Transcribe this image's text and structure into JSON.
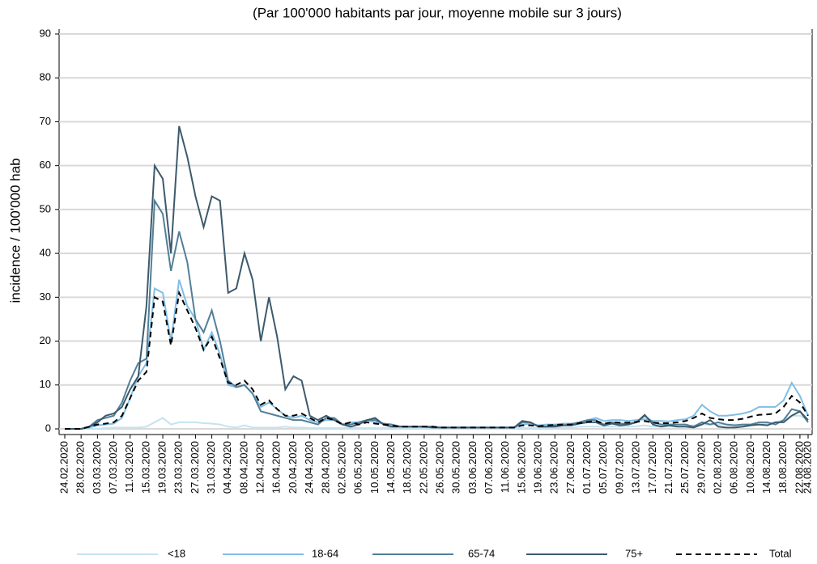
{
  "chart_data": {
    "type": "line",
    "title": "(Par 100'000 habitants par jour, moyenne mobile sur 3 jours)",
    "y_label": "incidence / 100'000 hab",
    "categories": [
      "24.02.2020",
      null,
      "28.02.2020",
      null,
      "03.03.2020",
      null,
      "07.03.2020",
      null,
      "11.03.2020",
      null,
      "15.03.2020",
      null,
      "19.03.2020",
      null,
      "23.03.2020",
      null,
      "27.03.2020",
      null,
      "31.03.2020",
      null,
      "04.04.2020",
      null,
      "08.04.2020",
      null,
      "12.04.2020",
      null,
      "16.04.2020",
      null,
      "20.04.2020",
      null,
      "24.04.2020",
      null,
      "28.04.2020",
      null,
      "02.05.2020",
      null,
      "06.05.2020",
      null,
      "10.05.2020",
      null,
      "14.05.2020",
      null,
      "18.05.2020",
      null,
      "22.05.2020",
      null,
      "26.05.2020",
      null,
      "30.05.2020",
      null,
      "03.06.2020",
      null,
      "07.06.2020",
      null,
      "11.06.2020",
      null,
      "15.06.2020",
      null,
      "19.06.2020",
      null,
      "23.06.2020",
      null,
      "27.06.2020",
      null,
      "01.07.2020",
      null,
      "05.07.2020",
      null,
      "09.07.2020",
      null,
      "13.07.2020",
      null,
      "17.07.2020",
      null,
      "21.07.2020",
      null,
      "25.07.2020",
      null,
      "29.07.2020",
      null,
      "02.08.2020",
      null,
      "06.08.2020",
      null,
      "10.08.2020",
      null,
      "14.08.2020",
      null,
      "18.08.2020",
      null,
      "22.08.2020",
      "24.08.2020"
    ],
    "series": [
      {
        "name": "<18",
        "color": "#c6e2f0",
        "dash": false,
        "values": [
          0,
          0,
          0,
          0,
          0,
          0.2,
          0.3,
          0.3,
          0.3,
          0.3,
          0.5,
          1.5,
          2.5,
          1,
          1.5,
          1.5,
          1.5,
          1.3,
          1.2,
          1,
          0.5,
          0.3,
          0.8,
          0.3,
          0.3,
          0.3,
          0.3,
          0.5,
          0.3,
          0.3,
          0.2,
          0.2,
          0.2,
          0.2,
          0.2,
          0.2,
          0.2,
          0.2,
          0.2,
          0.2,
          0.2,
          0.1,
          0.1,
          0.1,
          0.1,
          0.1,
          0.1,
          0.1,
          0.1,
          0.1,
          0.1,
          0.1,
          0.1,
          0.1,
          0.1,
          0.1,
          0.2,
          0.2,
          0.2,
          0.2,
          0.3,
          0.3,
          0.3,
          0.5,
          0.5,
          0.5,
          0.5,
          0.5,
          0.5,
          0.5,
          0.6,
          0.8,
          0.5,
          0.5,
          0.5,
          0.5,
          0.6,
          0.8,
          1,
          1,
          1,
          1,
          1,
          1,
          1,
          1,
          1.2,
          1.5,
          2,
          3,
          3,
          2
        ]
      },
      {
        "name": "18-64",
        "color": "#7fbfe6",
        "dash": false,
        "values": [
          0,
          0,
          0,
          0.3,
          0.8,
          1,
          1.2,
          2.5,
          7,
          12,
          15,
          32,
          31,
          20,
          34,
          28,
          25,
          18,
          22,
          17,
          10,
          9.5,
          10,
          8,
          5,
          6,
          4.5,
          3,
          2.5,
          3,
          2,
          1.5,
          2,
          2,
          1,
          1.5,
          1.5,
          2,
          1.5,
          1.2,
          1,
          0.6,
          0.5,
          0.5,
          0.5,
          0.5,
          0.3,
          0.3,
          0.3,
          0.3,
          0.3,
          0.3,
          0.3,
          0.3,
          0.3,
          0.3,
          1,
          1.2,
          0.8,
          1,
          1,
          1.2,
          1.2,
          1.5,
          2,
          2.5,
          1.8,
          2,
          2,
          1.8,
          2,
          2.2,
          1.8,
          1.8,
          1.7,
          2,
          2.2,
          3,
          5.5,
          4,
          3,
          3,
          3.2,
          3.5,
          4,
          5,
          5,
          5,
          6.5,
          10.5,
          7.5,
          3
        ]
      },
      {
        "name": "65-74",
        "color": "#527f98",
        "dash": false,
        "values": [
          0,
          0,
          0,
          0.5,
          2,
          2.5,
          3,
          6,
          11,
          15,
          16,
          52,
          49,
          36,
          45,
          38,
          25,
          22,
          27,
          20,
          11,
          9.5,
          10,
          8,
          4,
          3.5,
          3,
          2.5,
          2,
          2,
          1.5,
          1,
          2.5,
          2.5,
          1,
          1,
          1.5,
          2,
          2,
          1.2,
          1,
          0.5,
          0.5,
          0.5,
          0.5,
          0.5,
          0.3,
          0.3,
          0.3,
          0.3,
          0.3,
          0.3,
          0.3,
          0.3,
          0.3,
          0.3,
          1.5,
          1.5,
          0.5,
          0.5,
          0.8,
          0.8,
          1,
          1.5,
          2,
          2,
          1,
          1.5,
          1.2,
          1.2,
          1.5,
          3,
          1.5,
          1,
          1,
          1,
          1,
          0.5,
          1.5,
          1,
          1.5,
          1,
          0.8,
          1,
          1,
          1.5,
          1.5,
          1,
          2,
          4.5,
          4,
          1.5
        ]
      },
      {
        "name": "75+",
        "color": "#3d5a6c",
        "dash": false,
        "values": [
          0,
          0,
          0,
          0.5,
          1.5,
          3,
          3.5,
          5,
          9,
          12,
          28,
          60,
          57,
          40,
          69,
          62,
          53,
          46,
          53,
          52,
          31,
          32,
          40,
          34,
          20,
          30,
          21,
          9,
          12,
          11,
          3,
          2,
          3,
          2,
          1,
          0.5,
          1,
          2,
          2.5,
          1,
          0.5,
          0.5,
          0.5,
          0.5,
          0.5,
          0.3,
          0.3,
          0.3,
          0.3,
          0.3,
          0.3,
          0.3,
          0.3,
          0.3,
          0.3,
          0.3,
          1.8,
          1.5,
          0.5,
          0.5,
          0.5,
          0.8,
          0.8,
          1.2,
          1.5,
          1.5,
          0.8,
          1.2,
          0.8,
          1,
          1.5,
          3.2,
          1,
          0.5,
          0.8,
          0.5,
          0.5,
          0.3,
          1,
          2,
          0.5,
          0.3,
          0.3,
          0.5,
          0.8,
          1,
          0.8,
          1.5,
          1.5,
          3,
          4,
          2
        ]
      },
      {
        "name": "Total",
        "color": "#000000",
        "dash": true,
        "values": [
          0,
          0,
          0,
          0.5,
          1,
          1.2,
          1.5,
          3,
          7,
          11,
          13,
          30,
          29,
          19,
          31,
          27,
          23,
          18,
          21,
          16,
          10.5,
          10,
          11,
          9,
          5.5,
          6.5,
          4.5,
          3,
          3,
          3.5,
          2.5,
          1.5,
          2.5,
          2,
          1,
          1.5,
          1,
          1.5,
          1.2,
          1,
          0.8,
          0.5,
          0.5,
          0.5,
          0.5,
          0.5,
          0.3,
          0.3,
          0.3,
          0.3,
          0.3,
          0.3,
          0.3,
          0.3,
          0.3,
          0.3,
          0.8,
          0.8,
          0.6,
          0.8,
          0.9,
          1,
          1,
          1.3,
          1.6,
          1.8,
          1.2,
          1.5,
          1.4,
          1.4,
          1.6,
          1.8,
          1.4,
          1.3,
          1.3,
          1.5,
          1.8,
          2.5,
          3.5,
          2.5,
          2.2,
          2,
          2,
          2.3,
          2.8,
          3.2,
          3.3,
          3.5,
          5,
          7.5,
          6,
          3
        ]
      }
    ],
    "ylim": [
      0,
      90
    ],
    "yticks": [
      0,
      10,
      20,
      30,
      40,
      50,
      60,
      70,
      80,
      90
    ],
    "grid": true,
    "legend": "bottom"
  }
}
